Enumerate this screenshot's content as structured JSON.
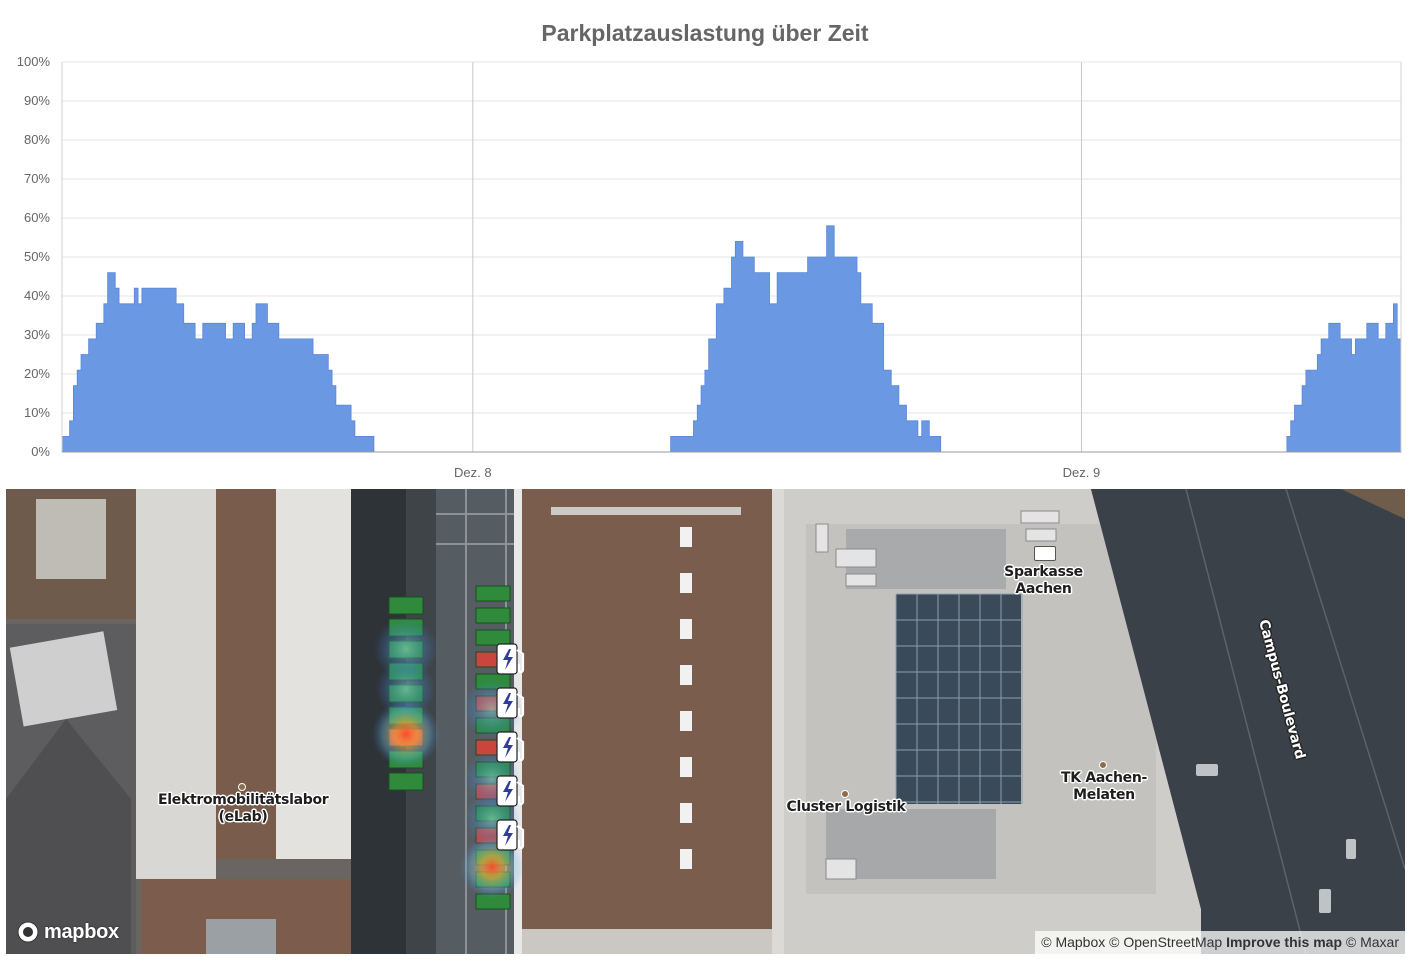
{
  "chart_data": {
    "type": "area",
    "title": "Parkplatzauslastung über Zeit",
    "ylim": [
      0,
      100
    ],
    "yticks": [
      "0%",
      "10%",
      "20%",
      "30%",
      "40%",
      "50%",
      "60%",
      "70%",
      "80%",
      "90%",
      "100%"
    ],
    "xticks": [
      {
        "label": "Dez. 8",
        "t": 10.8
      },
      {
        "label": "Dez. 9",
        "t": 26.8
      }
    ],
    "grid": true,
    "legend": "none",
    "fill_color": "#6b98e3",
    "series": [
      {
        "points": [
          [
            0,
            4
          ],
          [
            0.2,
            8
          ],
          [
            0.3,
            17
          ],
          [
            0.4,
            21
          ],
          [
            0.5,
            25
          ],
          [
            0.7,
            29
          ],
          [
            0.9,
            33
          ],
          [
            1.1,
            38
          ],
          [
            1.2,
            46
          ],
          [
            1.4,
            42
          ],
          [
            1.5,
            38
          ],
          [
            1.9,
            42
          ],
          [
            2.0,
            38
          ],
          [
            2.1,
            42
          ],
          [
            3.0,
            38
          ],
          [
            3.2,
            33
          ],
          [
            3.5,
            29
          ],
          [
            3.7,
            33
          ],
          [
            4.3,
            29
          ],
          [
            4.5,
            33
          ],
          [
            4.8,
            29
          ],
          [
            5.0,
            33
          ],
          [
            5.1,
            38
          ],
          [
            5.4,
            33
          ],
          [
            5.7,
            29
          ],
          [
            6.6,
            25
          ],
          [
            7.0,
            21
          ],
          [
            7.1,
            17
          ],
          [
            7.2,
            12
          ],
          [
            7.4,
            12
          ],
          [
            7.6,
            8
          ],
          [
            7.7,
            4
          ],
          [
            7.9,
            4
          ],
          [
            8.2,
            0
          ],
          [
            16.0,
            4
          ],
          [
            16.6,
            8
          ],
          [
            16.7,
            12
          ],
          [
            16.8,
            17
          ],
          [
            16.9,
            21
          ],
          [
            17.0,
            29
          ],
          [
            17.2,
            38
          ],
          [
            17.4,
            42
          ],
          [
            17.6,
            50
          ],
          [
            17.7,
            54
          ],
          [
            17.9,
            50
          ],
          [
            18.2,
            46
          ],
          [
            18.6,
            38
          ],
          [
            18.8,
            46
          ],
          [
            19.6,
            50
          ],
          [
            20.1,
            58
          ],
          [
            20.3,
            50
          ],
          [
            20.9,
            46
          ],
          [
            21.0,
            38
          ],
          [
            21.3,
            33
          ],
          [
            21.6,
            21
          ],
          [
            21.8,
            17
          ],
          [
            22.0,
            12
          ],
          [
            22.2,
            8
          ],
          [
            22.5,
            4
          ],
          [
            22.6,
            8
          ],
          [
            22.8,
            4
          ],
          [
            23.1,
            0
          ],
          [
            32.2,
            4
          ],
          [
            32.3,
            8
          ],
          [
            32.4,
            12
          ],
          [
            32.6,
            17
          ],
          [
            32.7,
            21
          ],
          [
            33.0,
            25
          ],
          [
            33.1,
            29
          ],
          [
            33.3,
            33
          ],
          [
            33.6,
            29
          ],
          [
            33.9,
            25
          ],
          [
            34.0,
            29
          ],
          [
            34.3,
            33
          ],
          [
            34.6,
            29
          ],
          [
            34.8,
            33
          ],
          [
            35.0,
            38
          ],
          [
            35.1,
            29
          ]
        ]
      }
    ],
    "t_max": 35.2
  },
  "map": {
    "labels": {
      "elab": "Elektromobilitätslabor\n(eLab)",
      "cluster": "Cluster Logistik",
      "sparkasse": "Sparkasse\nAachen",
      "tk": "TK Aachen-\nMelaten",
      "street": "Campus-Boulevard"
    },
    "logo": "mapbox",
    "attribution": {
      "mapbox": "© Mapbox",
      "osm": "© OpenStreetMap",
      "improve": "Improve this map",
      "maxar": "© Maxar"
    },
    "parking_colors": {
      "free": "#2f8a3c",
      "occupied": "#c9453d"
    },
    "charging_icon": "ev-charging-station-icon"
  }
}
